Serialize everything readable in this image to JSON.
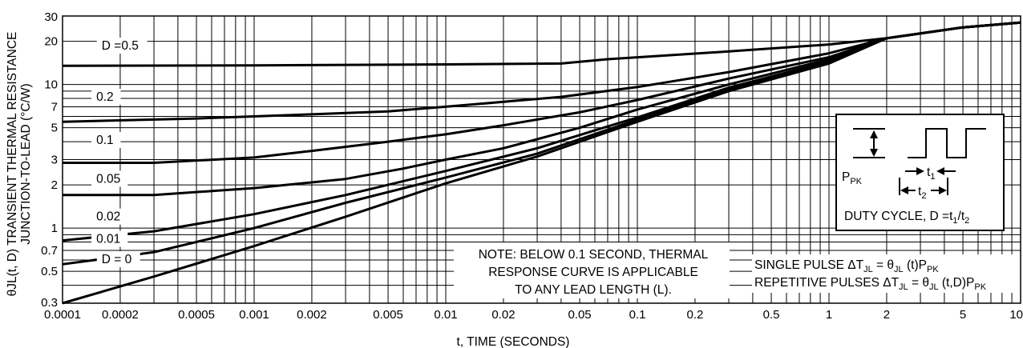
{
  "chart_data": {
    "type": "line",
    "title": "",
    "xlabel": "t, TIME (SECONDS)",
    "ylabel_line1": "θJL(t, D) TRANSIENT THERMAL RESISTANCE",
    "ylabel_line2": "JUNCTION-TO-LEAD (°C/W)",
    "x_scale": "log",
    "y_scale": "log",
    "xlim": [
      0.0001,
      10
    ],
    "ylim": [
      0.3,
      30
    ],
    "x_ticks": [
      0.0001,
      0.0002,
      0.0005,
      0.001,
      0.002,
      0.005,
      0.01,
      0.02,
      0.05,
      0.1,
      0.2,
      0.5,
      1,
      2,
      5,
      10
    ],
    "x_tick_labels": [
      "0.0001",
      "0.0002",
      "0.0005",
      "0.001",
      "0.002",
      "0.005",
      "0.01",
      "0.02",
      "0.05",
      "0.1",
      "0.2",
      "0.5",
      "1",
      "2",
      "5",
      "10"
    ],
    "y_ticks": [
      0.3,
      0.5,
      0.7,
      1,
      2,
      3,
      5,
      7,
      10,
      20,
      30
    ],
    "y_tick_labels": [
      "0.3",
      "0.5",
      "0.7",
      "1",
      "2",
      "3",
      "5",
      "7",
      "10",
      "20",
      "30"
    ],
    "grid": true,
    "series": [
      {
        "name": "D =0.5",
        "label_x": 0.00016,
        "label_y": 17.5,
        "points": [
          [
            0.0001,
            13.5
          ],
          [
            0.001,
            13.6
          ],
          [
            0.01,
            13.8
          ],
          [
            0.04,
            14.0
          ],
          [
            0.07,
            15.0
          ],
          [
            0.3,
            17.0
          ],
          [
            1,
            19.0
          ],
          [
            2,
            21.0
          ],
          [
            5,
            25.0
          ],
          [
            10,
            27.0
          ]
        ]
      },
      {
        "name": "0.2",
        "label_x": 0.00015,
        "label_y": 7.7,
        "points": [
          [
            0.0001,
            5.5
          ],
          [
            0.0005,
            5.8
          ],
          [
            0.002,
            6.2
          ],
          [
            0.005,
            6.5
          ],
          [
            0.01,
            7.0
          ],
          [
            0.04,
            8.2
          ],
          [
            0.1,
            9.6
          ],
          [
            0.3,
            12.2
          ],
          [
            1,
            16.5
          ],
          [
            2,
            21.0
          ],
          [
            5,
            25.0
          ],
          [
            10,
            27.0
          ]
        ]
      },
      {
        "name": "0.1",
        "label_x": 0.00015,
        "label_y": 3.85,
        "points": [
          [
            0.0001,
            2.85
          ],
          [
            0.0003,
            2.85
          ],
          [
            0.001,
            3.1
          ],
          [
            0.002,
            3.45
          ],
          [
            0.005,
            4.0
          ],
          [
            0.01,
            4.5
          ],
          [
            0.02,
            5.2
          ],
          [
            0.05,
            6.4
          ],
          [
            0.1,
            7.8
          ],
          [
            0.3,
            11.0
          ],
          [
            1,
            15.5
          ],
          [
            2,
            21.0
          ],
          [
            5,
            25.0
          ],
          [
            10,
            27.0
          ]
        ]
      },
      {
        "name": "0.05",
        "label_x": 0.00015,
        "label_y": 2.07,
        "points": [
          [
            0.0001,
            1.7
          ],
          [
            0.0003,
            1.7
          ],
          [
            0.001,
            1.9
          ],
          [
            0.003,
            2.2
          ],
          [
            0.006,
            2.6
          ],
          [
            0.01,
            3.0
          ],
          [
            0.02,
            3.6
          ],
          [
            0.05,
            5.0
          ],
          [
            0.1,
            6.7
          ],
          [
            0.3,
            10.0
          ],
          [
            1,
            15.0
          ],
          [
            2,
            21.0
          ],
          [
            5,
            25.0
          ],
          [
            10,
            27.0
          ]
        ]
      },
      {
        "name": "0.02",
        "label_x": 0.00015,
        "label_y": 1.13,
        "points": [
          [
            0.0001,
            0.82
          ],
          [
            0.0003,
            0.95
          ],
          [
            0.001,
            1.25
          ],
          [
            0.003,
            1.7
          ],
          [
            0.01,
            2.5
          ],
          [
            0.03,
            3.6
          ],
          [
            0.06,
            4.8
          ],
          [
            0.1,
            5.9
          ],
          [
            0.3,
            9.5
          ],
          [
            1,
            14.5
          ],
          [
            2,
            21.0
          ],
          [
            5,
            25.0
          ],
          [
            10,
            27.0
          ]
        ]
      },
      {
        "name": "0.01",
        "label_x": 0.00015,
        "label_y": 0.79,
        "points": [
          [
            0.0001,
            0.56
          ],
          [
            0.0003,
            0.68
          ],
          [
            0.001,
            1.0
          ],
          [
            0.003,
            1.5
          ],
          [
            0.01,
            2.25
          ],
          [
            0.03,
            3.3
          ],
          [
            0.1,
            5.7
          ],
          [
            0.3,
            9.3
          ],
          [
            1,
            14.2
          ],
          [
            2,
            21.0
          ],
          [
            5,
            25.0
          ],
          [
            10,
            27.0
          ]
        ]
      },
      {
        "name": "D = 0",
        "label_x": 0.00016,
        "label_y": 0.57,
        "points": [
          [
            0.0001,
            0.3
          ],
          [
            0.0003,
            0.46
          ],
          [
            0.001,
            0.75
          ],
          [
            0.003,
            1.2
          ],
          [
            0.01,
            2.05
          ],
          [
            0.03,
            3.15
          ],
          [
            0.1,
            5.5
          ],
          [
            0.3,
            9.0
          ],
          [
            1,
            14.0
          ],
          [
            2,
            21.0
          ],
          [
            5,
            25.0
          ],
          [
            10,
            27.0
          ]
        ]
      }
    ]
  },
  "note": {
    "lines": [
      "NOTE: BELOW 0.1 SECOND, THERMAL",
      "RESPONSE CURVE IS APPLICABLE",
      "TO ANY LEAD LENGTH (L)."
    ]
  },
  "formulas": {
    "single_pulse": {
      "lead": "SINGLE PULSE ΔT",
      "sub1": "JL",
      "mid": " = θ",
      "sub2": "JL",
      "tail": " (t)P",
      "sub3": "PK"
    },
    "repetitive": {
      "lead": "REPETITIVE PULSES ΔT",
      "sub1": "JL",
      "mid": " = θ",
      "sub2": "JL",
      "tail": " (t,D)P",
      "sub3": "PK"
    }
  },
  "inset": {
    "ppk": "P",
    "ppk_sub": "PK",
    "t1": "t",
    "t1_sub": "1",
    "t2": "t",
    "t2_sub": "2",
    "duty_main": "DUTY CYCLE, D =t",
    "duty_sub1": "1",
    "duty_slash": "/t",
    "duty_sub2": "2"
  }
}
